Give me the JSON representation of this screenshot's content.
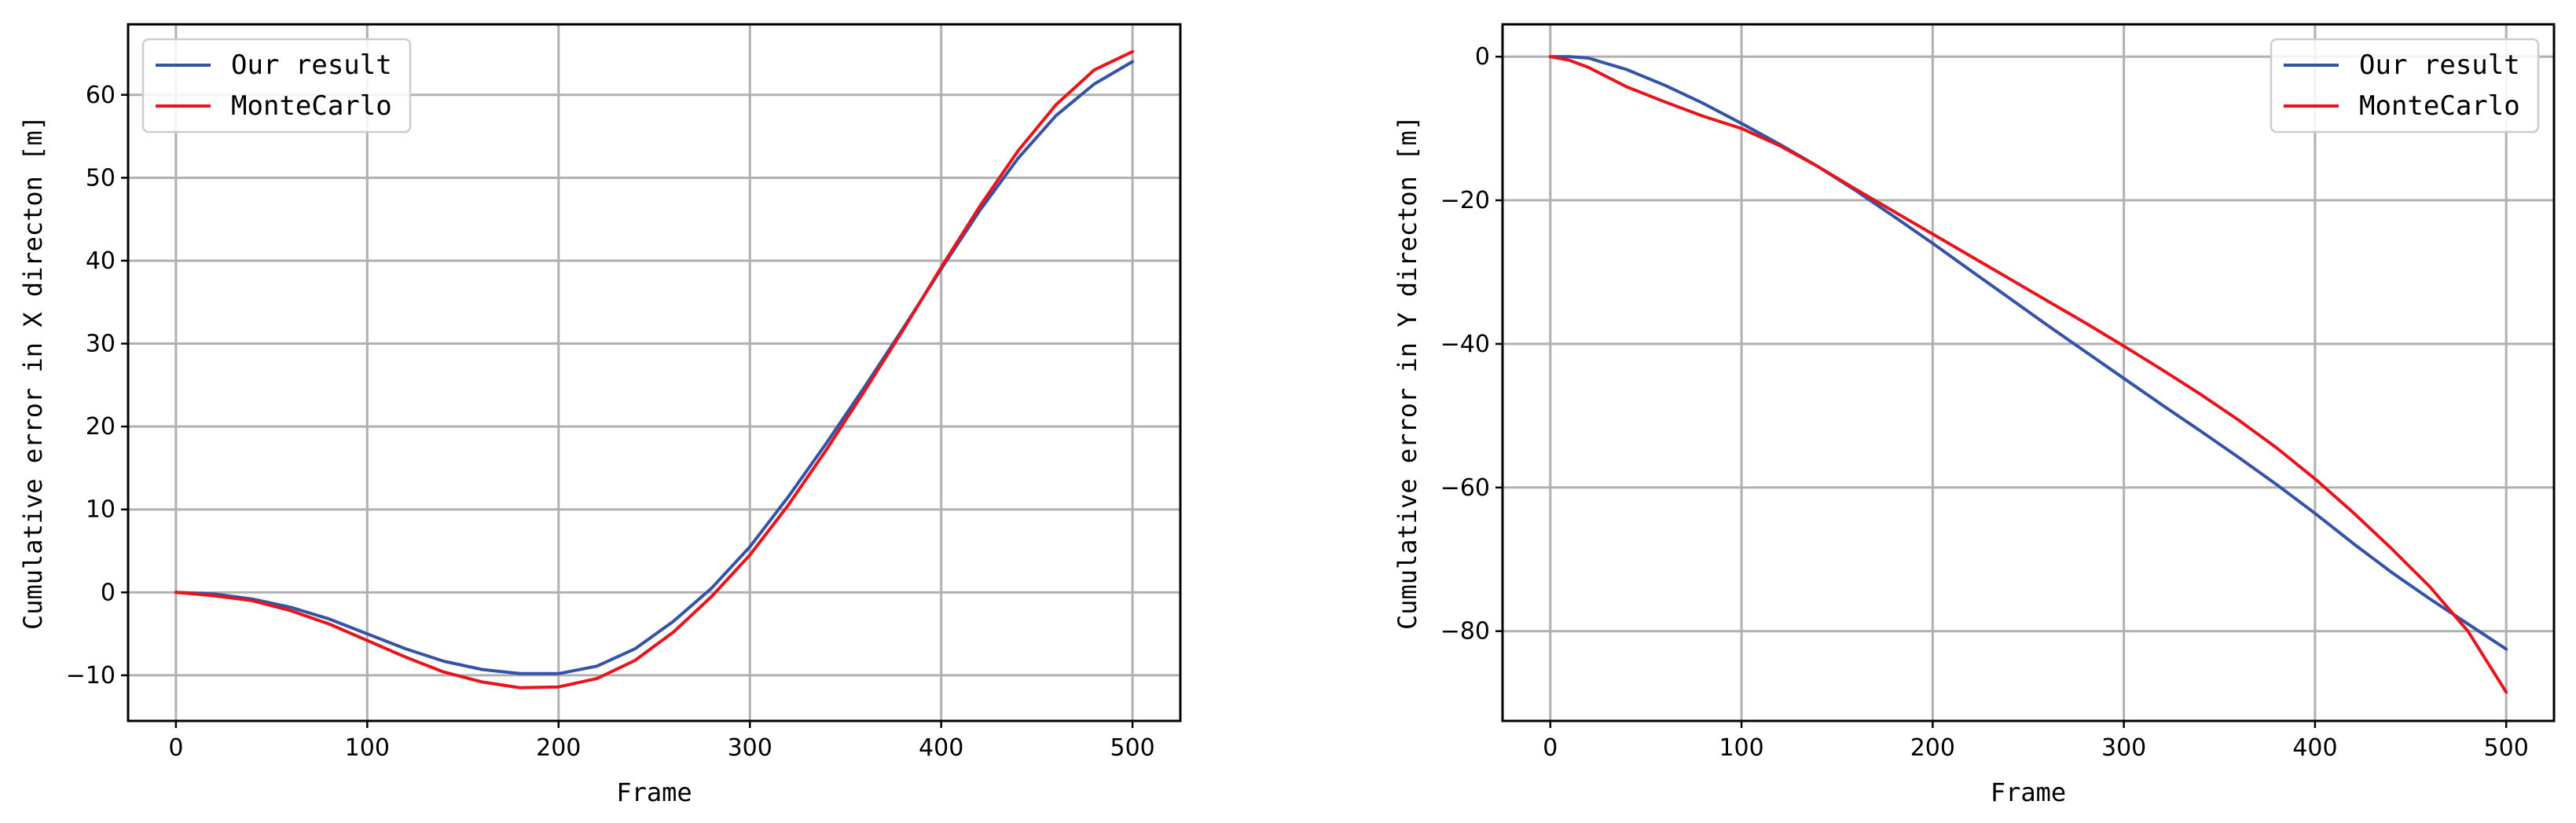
{
  "chart_data": [
    {
      "type": "line",
      "title": "",
      "xlabel": "Frame",
      "ylabel": "Cumulative error in X directon [m]",
      "xlim": [
        -25,
        525
      ],
      "ylim": [
        -15.5,
        68.5
      ],
      "xticks": [
        0,
        100,
        200,
        300,
        400,
        500
      ],
      "yticks": [
        -10,
        0,
        10,
        20,
        30,
        40,
        50,
        60
      ],
      "grid": true,
      "legend_position": "top-left",
      "series": [
        {
          "name": "Our result",
          "color": "#3553a6",
          "x": [
            0,
            20,
            40,
            60,
            80,
            100,
            120,
            140,
            160,
            180,
            200,
            220,
            240,
            260,
            280,
            300,
            320,
            340,
            360,
            380,
            400,
            420,
            440,
            460,
            480,
            500
          ],
          "y": [
            0,
            -0.2,
            -0.8,
            -1.8,
            -3.2,
            -5.0,
            -6.8,
            -8.3,
            -9.3,
            -9.8,
            -9.8,
            -8.9,
            -6.8,
            -3.5,
            0.5,
            5.5,
            11.5,
            18.0,
            24.8,
            31.8,
            39.0,
            46.0,
            52.3,
            57.5,
            61.3,
            64.0
          ]
        },
        {
          "name": "MonteCarlo",
          "color": "#e8141c",
          "x": [
            0,
            20,
            40,
            60,
            80,
            100,
            120,
            140,
            160,
            180,
            200,
            220,
            240,
            260,
            280,
            300,
            320,
            340,
            360,
            380,
            400,
            420,
            440,
            460,
            480,
            500
          ],
          "y": [
            0,
            -0.4,
            -1.0,
            -2.2,
            -3.8,
            -5.8,
            -7.8,
            -9.6,
            -10.8,
            -11.5,
            -11.4,
            -10.4,
            -8.2,
            -4.8,
            -0.5,
            4.5,
            10.5,
            17.2,
            24.3,
            31.6,
            39.2,
            46.5,
            53.2,
            58.8,
            63.0,
            65.2
          ]
        }
      ]
    },
    {
      "type": "line",
      "title": "",
      "xlabel": "Frame",
      "ylabel": "Cumulative error in Y directon [m]",
      "xlim": [
        -25,
        525
      ],
      "ylim": [
        -92.5,
        4.5
      ],
      "xticks": [
        0,
        100,
        200,
        300,
        400,
        500
      ],
      "yticks": [
        -80,
        -60,
        -40,
        -20,
        0
      ],
      "grid": true,
      "legend_position": "top-right",
      "series": [
        {
          "name": "Our result",
          "color": "#3553a6",
          "x": [
            0,
            10,
            20,
            40,
            60,
            80,
            100,
            120,
            140,
            160,
            180,
            200,
            220,
            240,
            260,
            280,
            300,
            320,
            340,
            360,
            380,
            400,
            420,
            440,
            460,
            480,
            500
          ],
          "y": [
            0,
            0,
            -0.2,
            -1.8,
            -4.0,
            -6.5,
            -9.3,
            -12.2,
            -15.3,
            -18.7,
            -22.3,
            -26.0,
            -29.8,
            -33.6,
            -37.4,
            -41.1,
            -44.8,
            -48.5,
            -52.1,
            -55.8,
            -59.6,
            -63.6,
            -67.8,
            -71.8,
            -75.5,
            -79.0,
            -82.5
          ]
        },
        {
          "name": "MonteCarlo",
          "color": "#e8141c",
          "x": [
            0,
            10,
            20,
            40,
            60,
            80,
            100,
            120,
            140,
            160,
            180,
            200,
            220,
            240,
            260,
            280,
            300,
            320,
            340,
            360,
            380,
            400,
            420,
            440,
            460,
            480,
            500
          ],
          "y": [
            0,
            -0.5,
            -1.5,
            -4.2,
            -6.3,
            -8.3,
            -10.0,
            -12.4,
            -15.3,
            -18.5,
            -21.6,
            -24.7,
            -27.8,
            -30.9,
            -34.0,
            -37.1,
            -40.3,
            -43.6,
            -47.0,
            -50.6,
            -54.5,
            -58.8,
            -63.5,
            -68.5,
            -73.8,
            -80.0,
            -88.5
          ]
        }
      ]
    }
  ]
}
